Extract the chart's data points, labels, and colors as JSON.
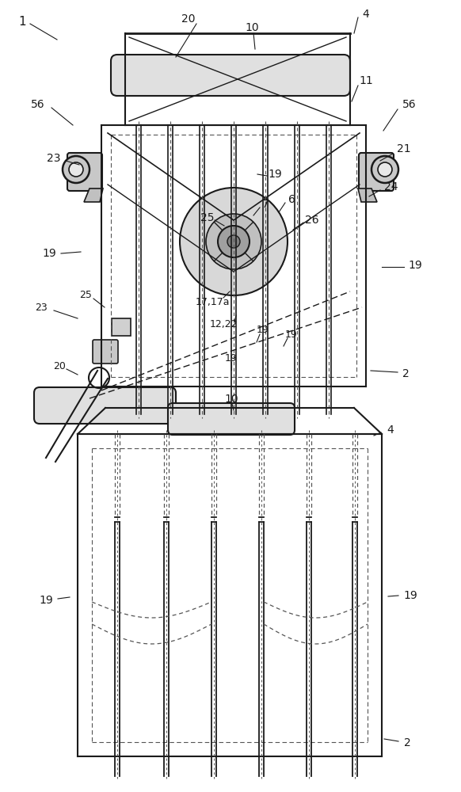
{
  "bg_color": "#ffffff",
  "line_color": "#1a1a1a",
  "dashed_color": "#555555",
  "fig_width": 5.82,
  "fig_height": 10.0
}
